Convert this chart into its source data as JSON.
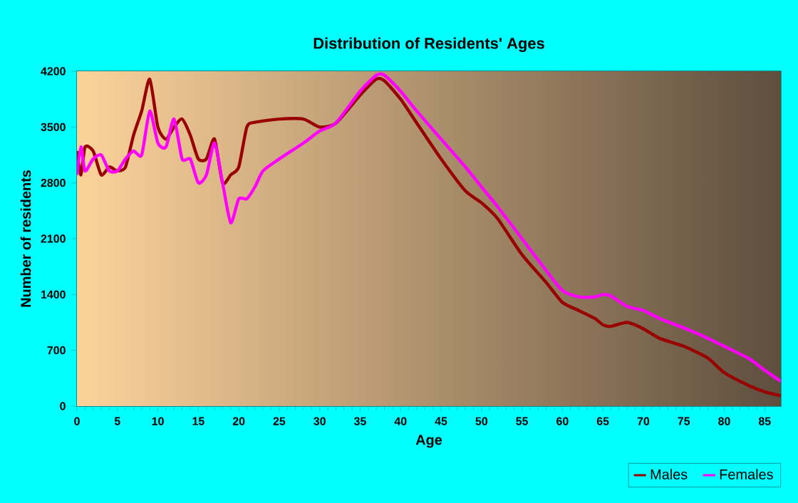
{
  "chart_data": {
    "type": "line",
    "title": "Distribution of Residents' Ages",
    "xlabel": "Age",
    "ylabel": "Number of residents",
    "xlim": [
      0,
      87
    ],
    "ylim": [
      0,
      4200
    ],
    "xticks": [
      0,
      5,
      10,
      15,
      20,
      25,
      30,
      35,
      40,
      45,
      50,
      55,
      60,
      65,
      70,
      75,
      80,
      85
    ],
    "yticks": [
      0,
      700,
      1400,
      2100,
      2800,
      3500,
      4200
    ],
    "grid": true,
    "legend": "bottom right",
    "line_style": "solid",
    "marker": "none",
    "series": [
      {
        "name": "Males",
        "color": "#990000",
        "x": [
          0,
          0.5,
          1,
          2,
          3,
          4,
          5,
          6,
          7,
          8,
          9,
          10,
          11,
          12,
          13,
          14,
          15,
          16,
          17,
          18,
          19,
          20,
          21,
          22,
          25,
          28,
          30,
          32,
          35,
          37,
          38,
          40,
          42,
          45,
          48,
          50,
          52,
          55,
          58,
          60,
          62,
          64,
          65,
          66,
          68,
          70,
          72,
          75,
          78,
          80,
          83,
          85,
          87
        ],
        "values": [
          3200,
          2900,
          3250,
          3200,
          2900,
          3000,
          2950,
          3000,
          3400,
          3700,
          4100,
          3500,
          3350,
          3500,
          3600,
          3400,
          3100,
          3100,
          3350,
          2800,
          2900,
          3000,
          3500,
          3560,
          3600,
          3600,
          3500,
          3550,
          3900,
          4100,
          4080,
          3850,
          3550,
          3100,
          2700,
          2550,
          2350,
          1900,
          1550,
          1300,
          1200,
          1100,
          1020,
          1000,
          1050,
          970,
          850,
          750,
          600,
          420,
          260,
          180,
          130
        ]
      },
      {
        "name": "Females",
        "color": "#ff00ff",
        "x": [
          0,
          0.5,
          1,
          2,
          3,
          4,
          5,
          6,
          7,
          8,
          9,
          10,
          11,
          12,
          13,
          14,
          15,
          16,
          17,
          18,
          19,
          20,
          21,
          22,
          23,
          25,
          28,
          30,
          32,
          35,
          37,
          38,
          40,
          42,
          45,
          48,
          50,
          52,
          55,
          58,
          60,
          62,
          64,
          65,
          66,
          68,
          70,
          72,
          75,
          78,
          80,
          83,
          85,
          87
        ],
        "values": [
          2900,
          3250,
          2950,
          3100,
          3150,
          2950,
          2950,
          3100,
          3200,
          3150,
          3700,
          3300,
          3250,
          3600,
          3100,
          3100,
          2800,
          2900,
          3300,
          2800,
          2300,
          2600,
          2600,
          2750,
          2950,
          3100,
          3300,
          3450,
          3550,
          3950,
          4150,
          4150,
          3950,
          3700,
          3350,
          3000,
          2750,
          2500,
          2100,
          1700,
          1450,
          1370,
          1370,
          1400,
          1380,
          1250,
          1200,
          1100,
          980,
          850,
          750,
          600,
          450,
          310
        ]
      }
    ]
  }
}
